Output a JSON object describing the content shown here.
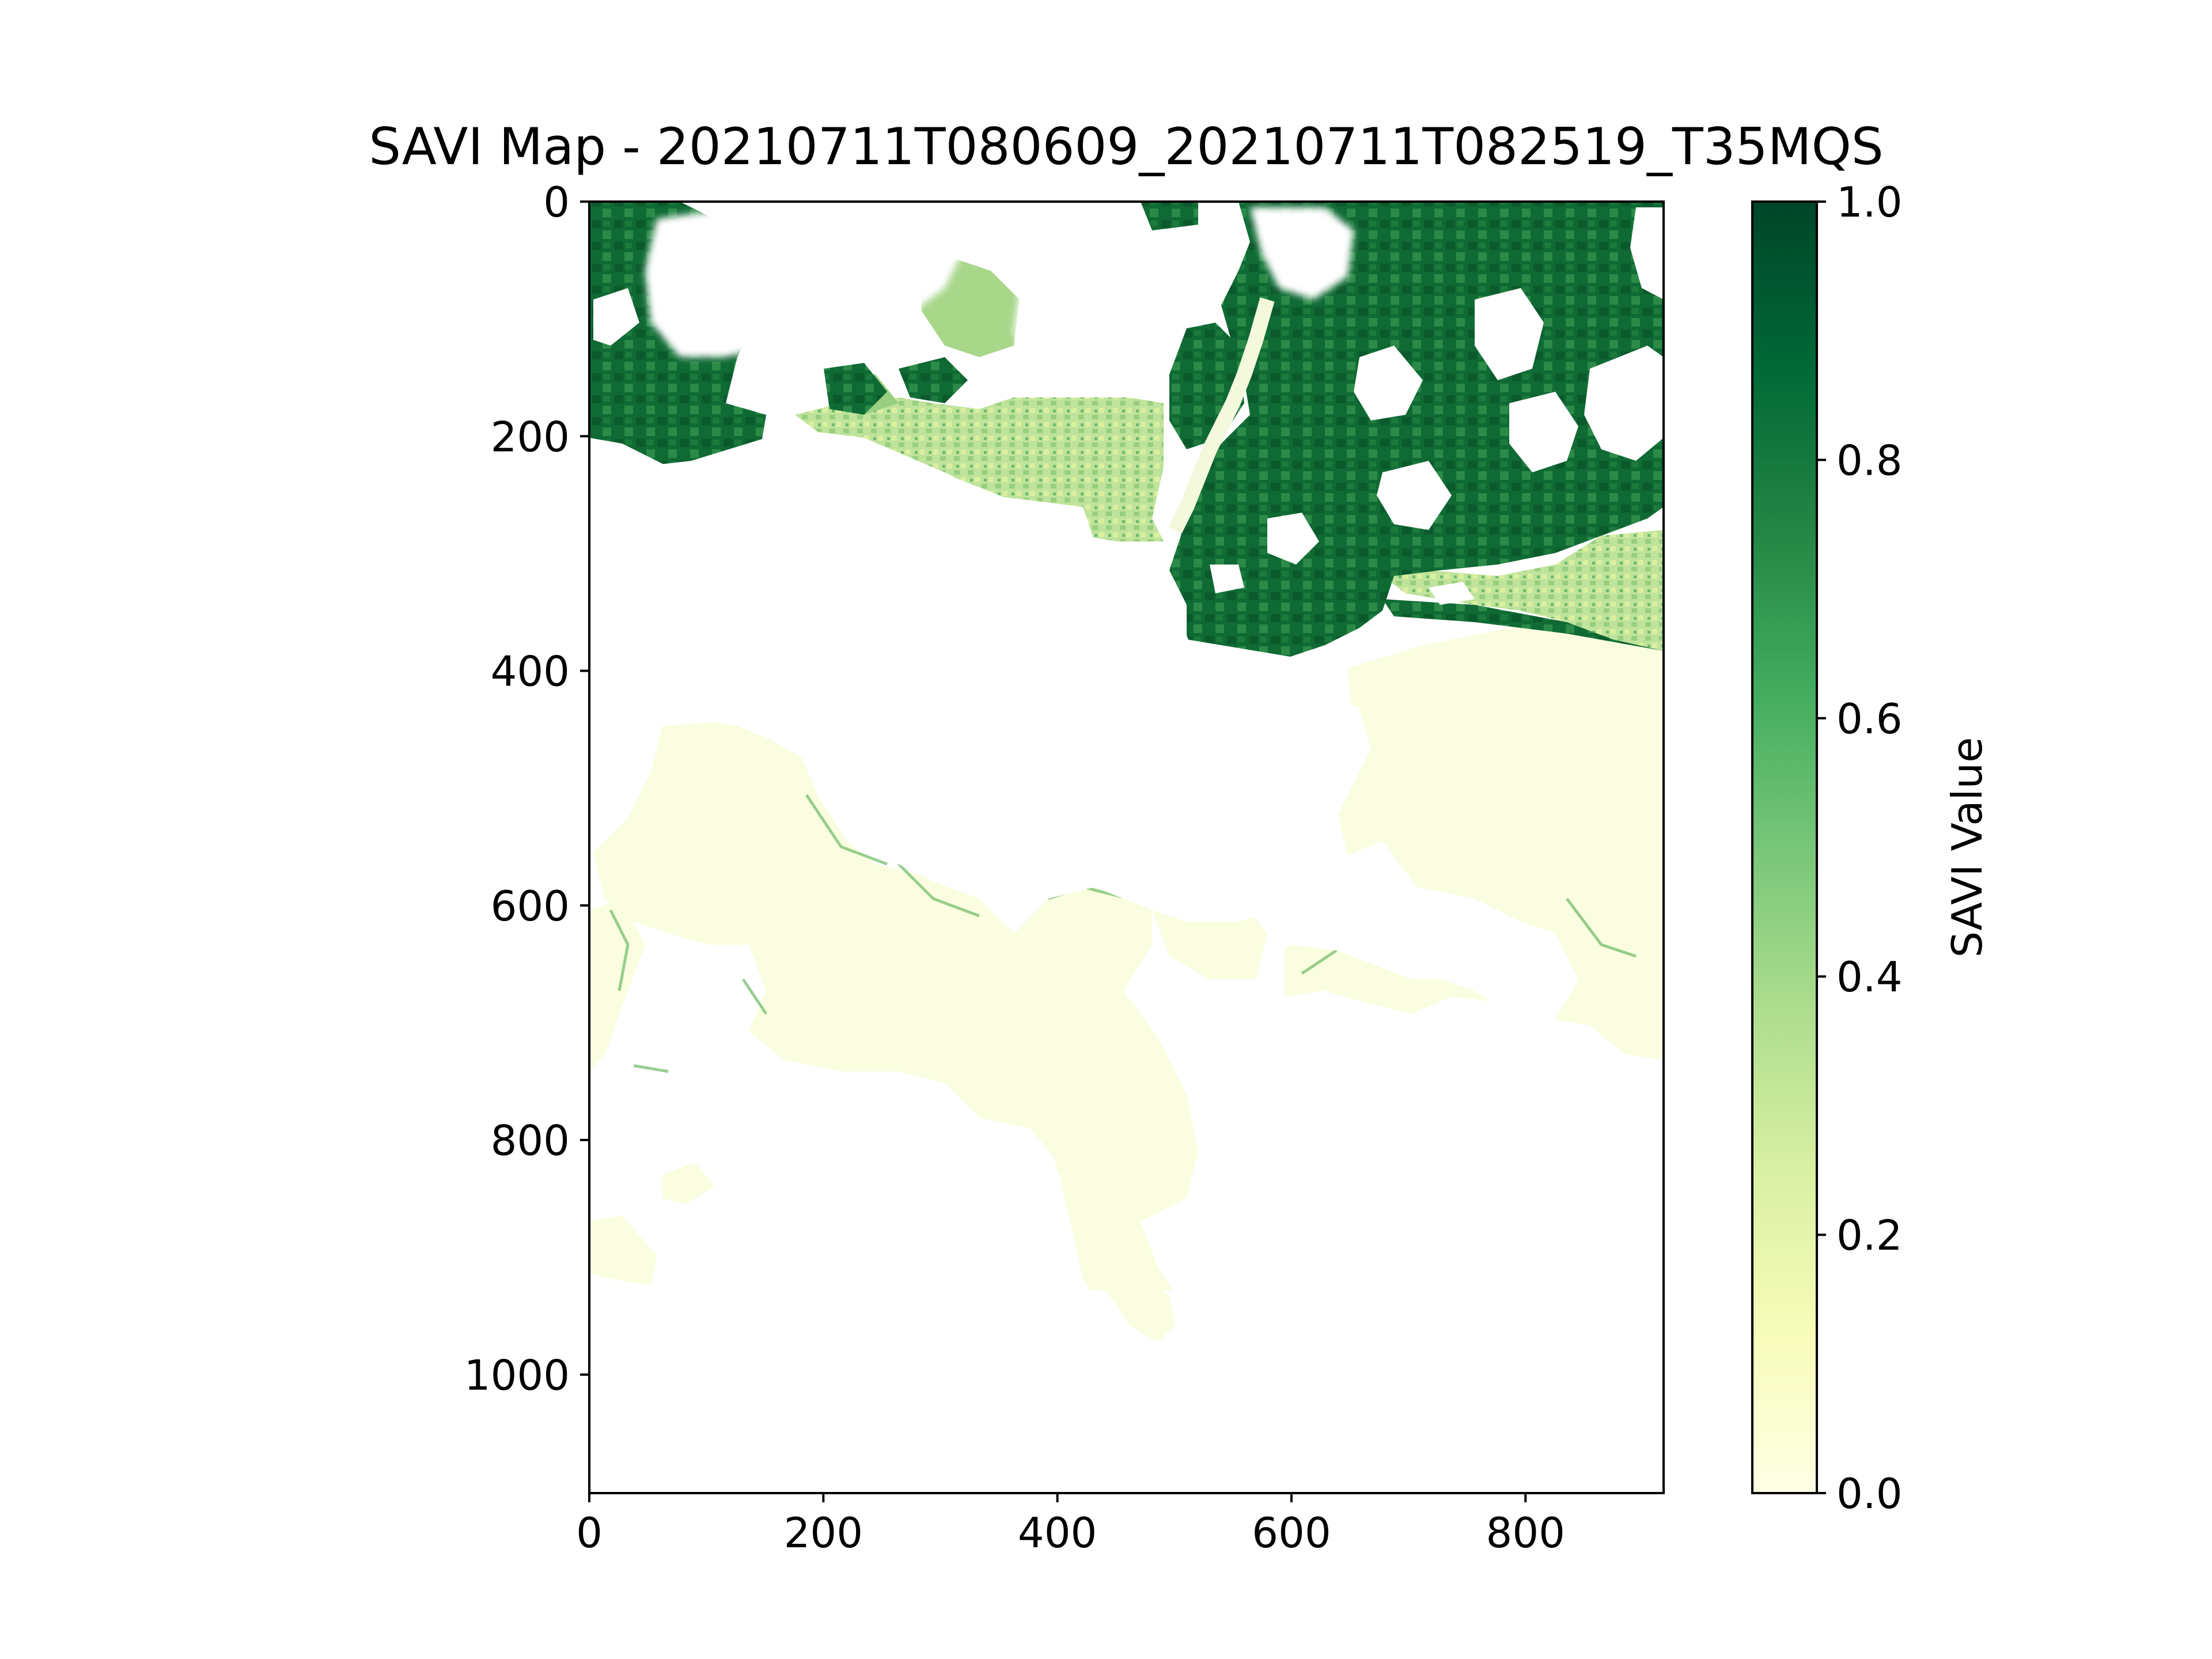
{
  "chart_data": {
    "type": "heatmap",
    "title": "SAVI Map - 20210711T080609_20210711T082519_T35MQS",
    "xlabel": "",
    "ylabel": "",
    "x_range": [
      0,
      918
    ],
    "y_range": [
      1101,
      0
    ],
    "x_ticks": [
      0,
      200,
      400,
      600,
      800
    ],
    "y_ticks": [
      0,
      200,
      400,
      600,
      800,
      1000
    ],
    "colormap": "YlGn",
    "colorbar": {
      "label": "SAVI Value",
      "range": [
        0.0,
        1.0
      ],
      "ticks": [
        "0.0",
        "0.2",
        "0.4",
        "0.6",
        "0.8",
        "1.0"
      ]
    },
    "grid": false,
    "regions": [
      {
        "description": "dense vegetation",
        "savi_approx": 0.85,
        "extent_x": [
          0,
          918
        ],
        "extent_y": [
          0,
          420
        ],
        "location": "north-east"
      },
      {
        "description": "moderate vegetation strip",
        "savi_approx": 0.35,
        "extent_x": [
          170,
          500
        ],
        "extent_y": [
          170,
          290
        ],
        "location": "north-center"
      },
      {
        "description": "bare / low vegetation",
        "savi_approx": 0.05,
        "extent_x": [
          0,
          918
        ],
        "extent_y": [
          370,
          990
        ],
        "location": "south"
      },
      {
        "description": "no data (cloud mask)",
        "savi_approx": null,
        "extent_x": [
          0,
          918
        ],
        "extent_y": [
          0,
          1101
        ],
        "location": "scattered"
      }
    ]
  },
  "colors": {
    "dark_green": "#00582f",
    "mid_green": "#3d9e55",
    "light_green": "#a9d88e",
    "pale_yellow": "#fdfee0"
  }
}
